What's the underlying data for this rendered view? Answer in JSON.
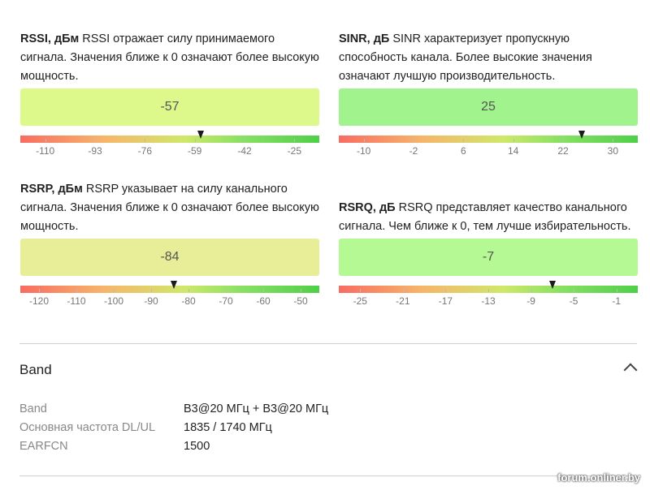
{
  "metrics": [
    {
      "id": "rssi",
      "name": "RSSI, дБм",
      "description": " RSSI отражает силу принимаемого сигнала. Значения ближе к 0 означают более высокую мощность.",
      "value": "-57",
      "value_num": -57,
      "box_color": "#def98b",
      "scale_min": -118.5,
      "scale_max": -16.5,
      "ticks": [
        "-110",
        "-93",
        "-76",
        "-59",
        "-42",
        "-25"
      ]
    },
    {
      "id": "sinr",
      "name": "SINR, дБ",
      "description": " SINR характеризует пропускную способность канала. Более высокие значения означают лучшую производительность.",
      "value": "25",
      "value_num": 25,
      "box_color": "#a1f38e",
      "scale_min": -14,
      "scale_max": 34,
      "ticks": [
        "-10",
        "-2",
        "6",
        "14",
        "22",
        "30"
      ]
    },
    {
      "id": "rsrp",
      "name": "RSRP, дБм",
      "description": " RSRP указывает на силу канального сигнала. Значения ближе к 0 означают более высокую мощность.",
      "value": "-84",
      "value_num": -84,
      "box_color": "#e7ee97",
      "scale_min": -125,
      "scale_max": -45,
      "ticks": [
        "-120",
        "-110",
        "-100",
        "-90",
        "-80",
        "-70",
        "-60",
        "-50"
      ]
    },
    {
      "id": "rsrq",
      "name": "RSRQ, дБ",
      "description": " RSRQ представляет качество канального сигнала. Чем ближе к 0, тем лучше избирательность.",
      "value": "-7",
      "value_num": -7,
      "box_color": "#b4f993",
      "scale_min": -27,
      "scale_max": 1,
      "ticks": [
        "-25",
        "-21",
        "-17",
        "-13",
        "-9",
        "-5",
        "-1"
      ]
    }
  ],
  "band_section": {
    "title": "Band",
    "rows": [
      {
        "label": "Band",
        "value": "B3@20 МГц + B3@20 МГц"
      },
      {
        "label": "Основная частота DL/UL",
        "value": "1835 / 1740 МГц"
      },
      {
        "label": "EARFCN",
        "value": "1500"
      }
    ]
  },
  "watermark": "forum.onliner.by"
}
